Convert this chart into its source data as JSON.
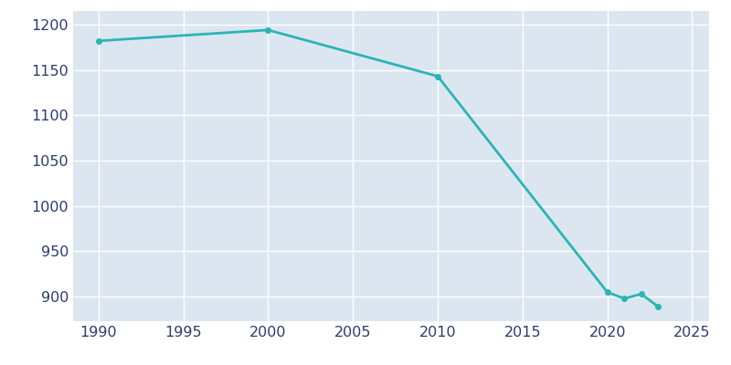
{
  "years": [
    1990,
    2000,
    2010,
    2020,
    2021,
    2022,
    2023
  ],
  "population": [
    1182,
    1194,
    1143,
    905,
    898,
    903,
    889
  ],
  "line_color": "#2ab5b5",
  "marker": "o",
  "marker_size": 4,
  "line_width": 2,
  "bg_color": "#ffffff",
  "plot_bg_color": "#dce6f0",
  "grid_color": "#ffffff",
  "xlabel": "",
  "ylabel": "",
  "xlim": [
    1988.5,
    2026
  ],
  "ylim": [
    873,
    1215
  ],
  "xticks": [
    1990,
    1995,
    2000,
    2005,
    2010,
    2015,
    2020,
    2025
  ],
  "yticks": [
    900,
    950,
    1000,
    1050,
    1100,
    1150,
    1200
  ],
  "tick_label_color": "#2d3b6e",
  "tick_fontsize": 11.5
}
